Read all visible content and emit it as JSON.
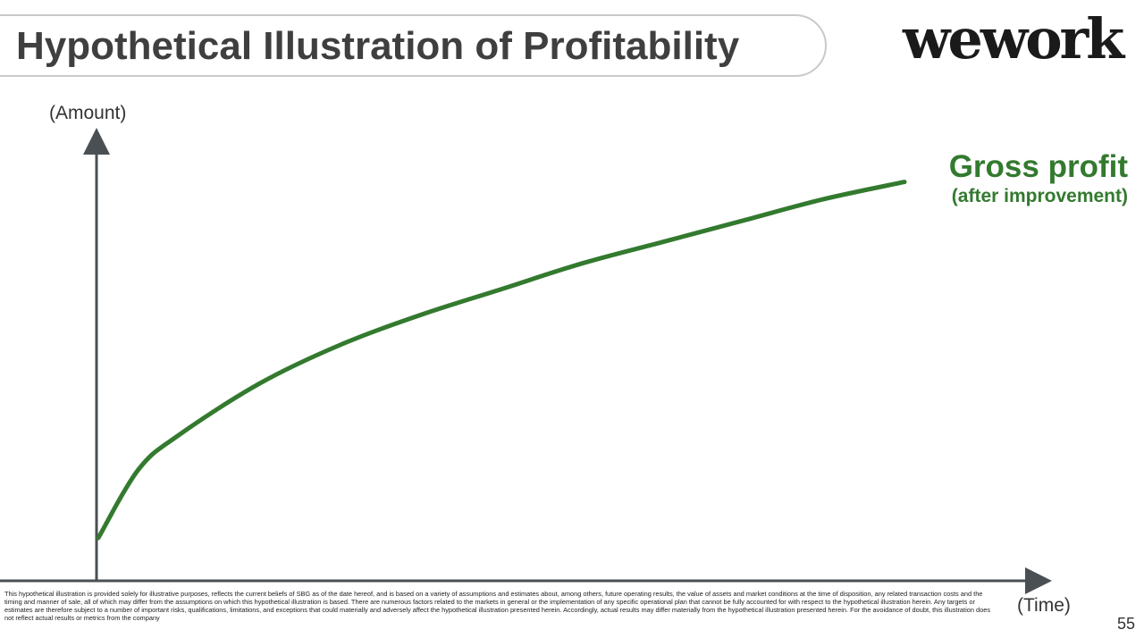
{
  "slide": {
    "title": "Hypothetical Illustration of Profitability",
    "logo_text": "wework",
    "page_number": "55",
    "disclaimer": "This hypothetical illustration is provided solely for illustrative purposes, reflects the current beliefs of SBG as of the date hereof, and is based on a variety of assumptions and estimates about, among others, future operating results, the value of assets and market conditions at the time of disposition, any related transaction costs and the timing and manner of sale, all of which may differ from the assumptions on which this hypothetical illustration is based. There are numerous factors related to the markets in general or the implementation of any specific operational plan that cannot be fully accounted for with respect to the hypothetical illustration herein. Any targets or estimates are therefore subject to a number of important risks, qualifications, limitations, and exceptions that could materially and adversely affect the hypothetical illustration presented herein. Accordingly, actual results may differ materially from the hypothetical illustration presented herein. For the avoidance of doubt, this illustration does not reflect  actual results or metrics from the company"
  },
  "chart_data": {
    "type": "line",
    "title": "",
    "xlabel": "(Time)",
    "ylabel": "(Amount)",
    "grid": false,
    "xlim": [
      0,
      1
    ],
    "ylim": [
      0,
      1
    ],
    "series": [
      {
        "name": "Gross profit",
        "subtitle": "(after improvement)",
        "color": "#337a2f",
        "x": [
          0,
          0.05,
          0.1,
          0.2,
          0.3,
          0.4,
          0.5,
          0.6,
          0.7,
          0.8,
          0.9,
          1.0
        ],
        "y": [
          0.1,
          0.26,
          0.34,
          0.46,
          0.55,
          0.62,
          0.68,
          0.74,
          0.79,
          0.84,
          0.89,
          0.93
        ]
      }
    ],
    "colors": {
      "axis": "#4a4f54",
      "series": "#337a2f",
      "title_text": "#3f3f3f"
    }
  }
}
